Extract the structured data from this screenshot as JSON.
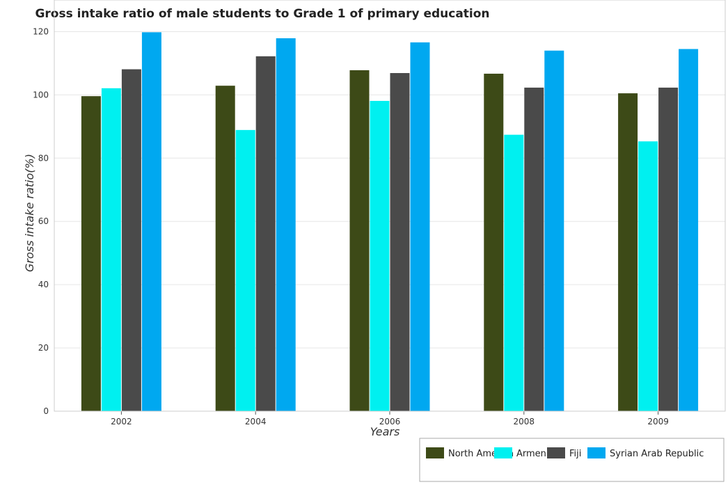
{
  "chart_data": {
    "type": "bar",
    "title": "Gross intake ratio of male students to Grade 1 of primary education",
    "xlabel": "Years",
    "ylabel": "Gross intake ratio(%)",
    "categories": [
      "2002",
      "2004",
      "2006",
      "2008",
      "2009"
    ],
    "ylim": [
      0,
      130
    ],
    "yticks": [
      0,
      20,
      40,
      60,
      80,
      100,
      120
    ],
    "grid": true,
    "legend_position": "bottom-right",
    "series": [
      {
        "name": "North America",
        "color": "#3d4a17",
        "values": [
          99.6,
          102.9,
          107.8,
          106.7,
          100.5
        ]
      },
      {
        "name": "Armenia",
        "color": "#00f0f0",
        "values": [
          102.1,
          88.9,
          98.1,
          87.4,
          85.3
        ]
      },
      {
        "name": "Fiji",
        "color": "#4a4a4a",
        "values": [
          108.1,
          112.2,
          106.9,
          102.3,
          102.3
        ]
      },
      {
        "name": "Syrian Arab Republic",
        "color": "#00a8f0",
        "values": [
          119.8,
          117.9,
          116.6,
          114.0,
          114.5
        ]
      }
    ]
  }
}
